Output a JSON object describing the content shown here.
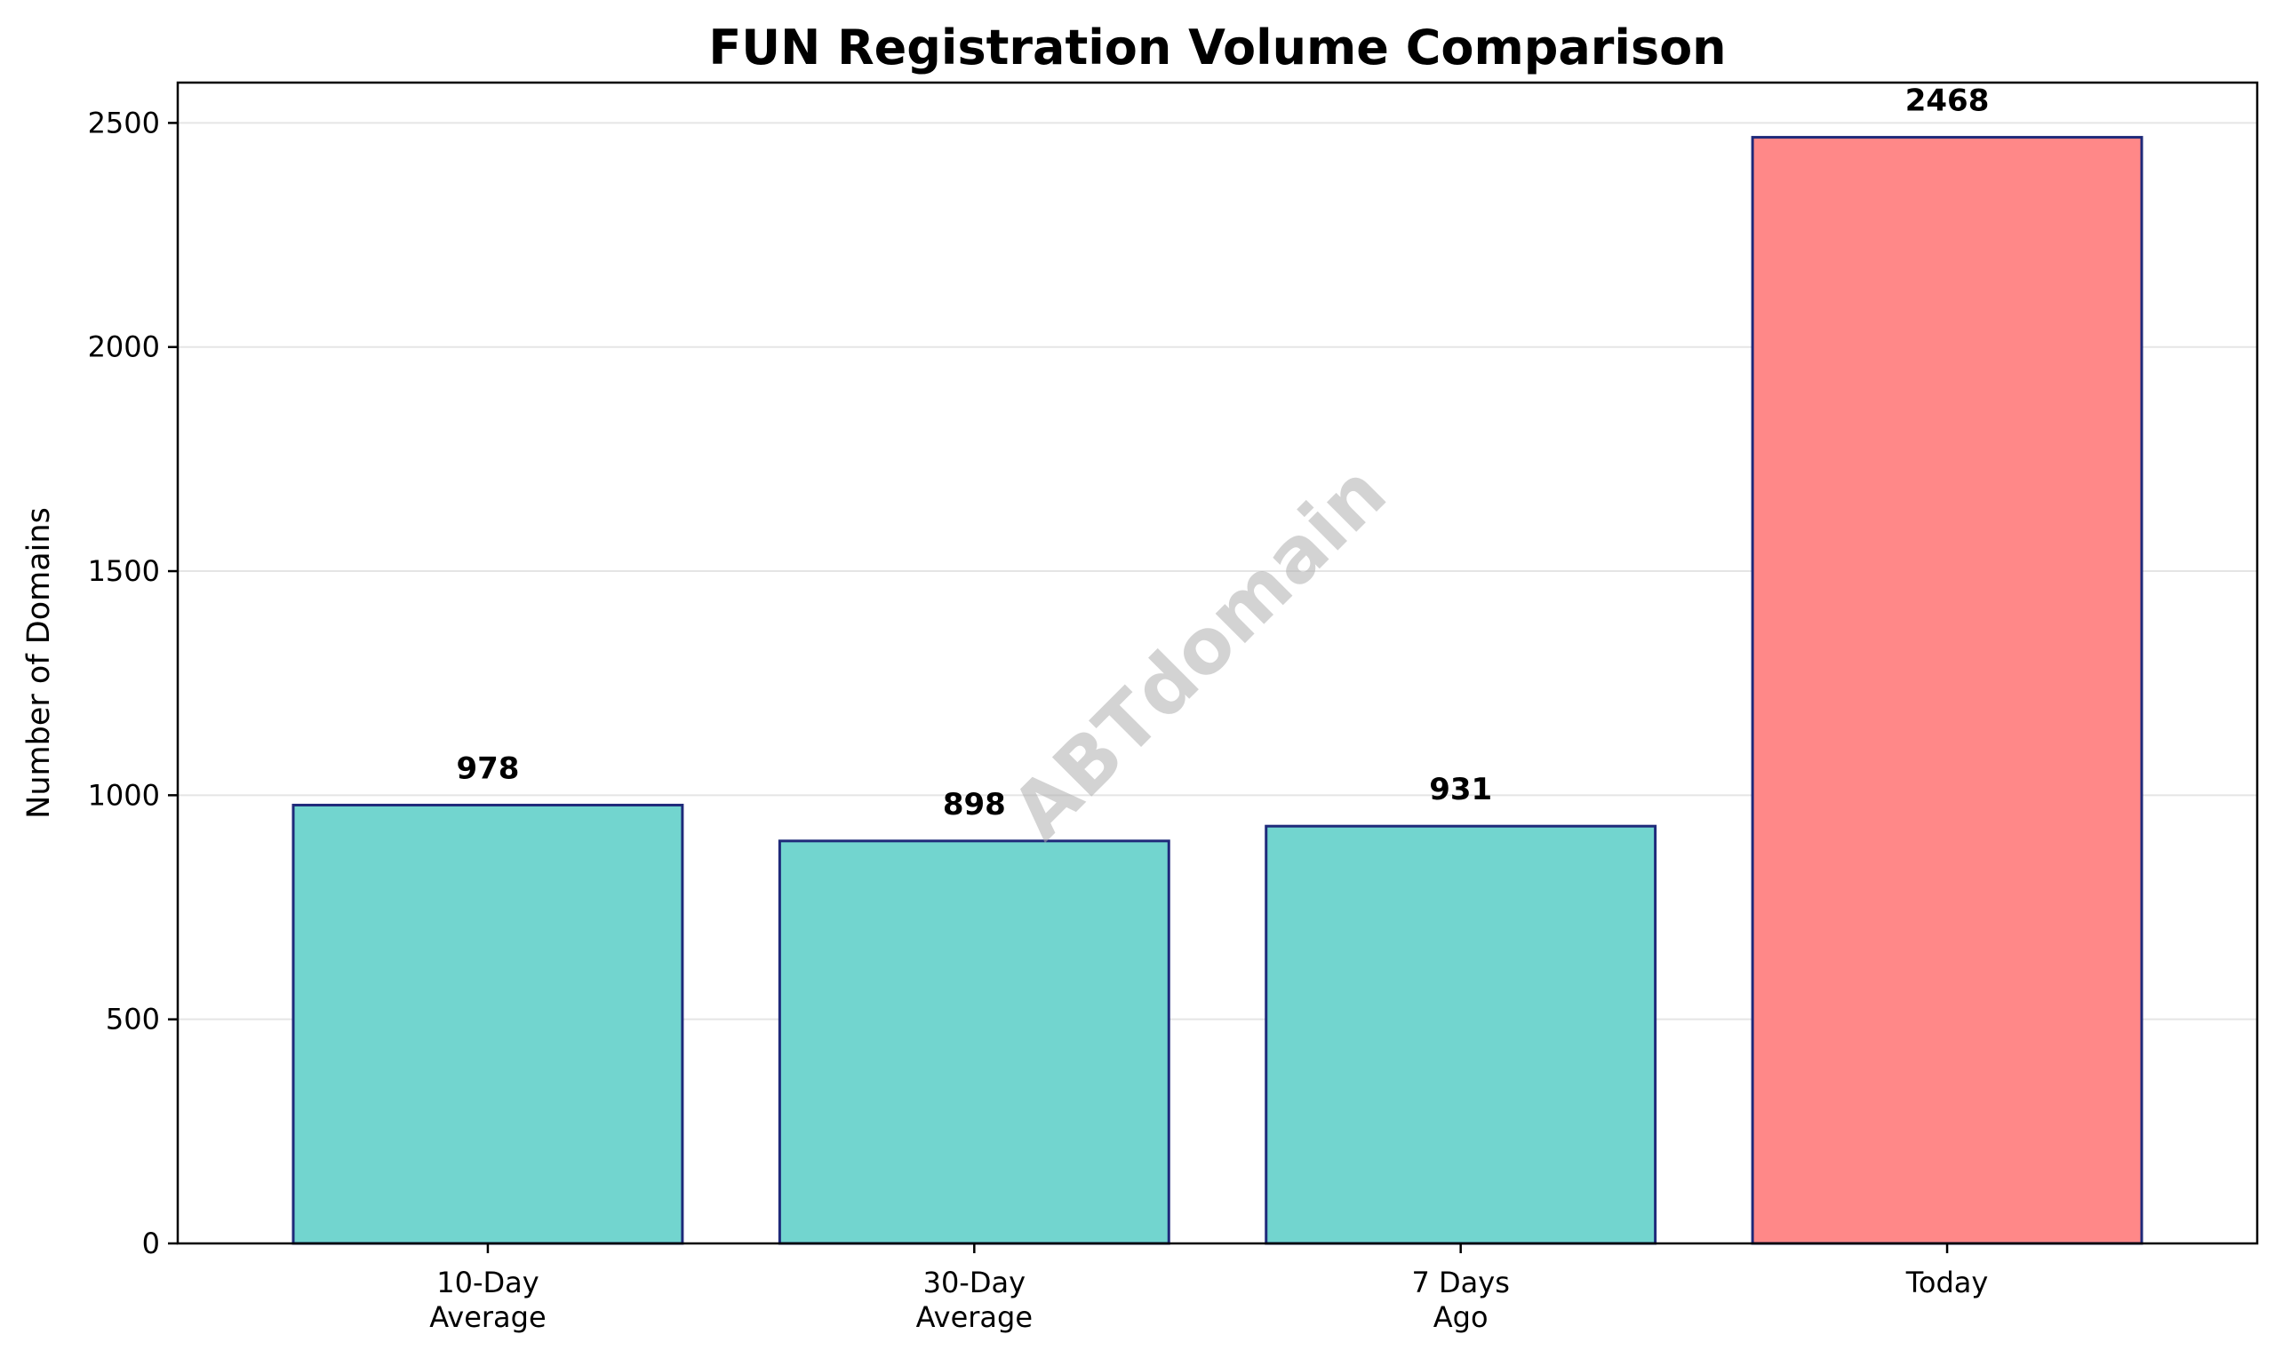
{
  "chart_data": {
    "type": "bar",
    "title": "FUN Registration Volume Comparison",
    "xlabel": "",
    "ylabel": "Number of Domains",
    "categories": [
      [
        "10-Day",
        "Average"
      ],
      [
        "30-Day",
        "Average"
      ],
      [
        "7 Days",
        "Ago"
      ],
      [
        "Today"
      ]
    ],
    "values": [
      978,
      898,
      931,
      2468
    ],
    "value_labels": [
      "978",
      "898",
      "931",
      "2468"
    ],
    "ylim": [
      0,
      2590
    ],
    "yticks": [
      0,
      500,
      1000,
      1500,
      2000,
      2500
    ],
    "ytick_labels": [
      "0",
      "500",
      "1000",
      "1500",
      "2000",
      "2500"
    ],
    "bar_colors": [
      "#72d5cf",
      "#72d5cf",
      "#72d5cf",
      "#ff8888"
    ],
    "bar_edge_color": "#1f2a7a",
    "grid": "y",
    "grid_color": "#e5e5e5",
    "legend": "none"
  },
  "watermark": {
    "text": "ABTdomain",
    "color": "#b0b0b0"
  }
}
